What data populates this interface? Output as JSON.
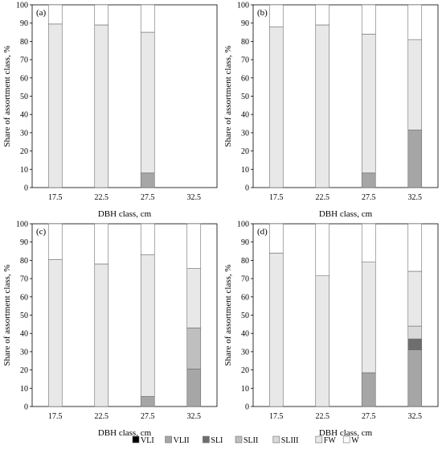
{
  "chart_data": [
    {
      "type": "bar",
      "stacked": true,
      "title": "(a)",
      "xlabel": "DBH class, cm",
      "ylabel": "Share of assortment class, %",
      "ylim": [
        0,
        100
      ],
      "yticks": [
        0,
        10,
        20,
        30,
        40,
        50,
        60,
        70,
        80,
        90,
        100
      ],
      "grid": false,
      "categories": [
        "17.5",
        "22.5",
        "27.5",
        "32.5"
      ],
      "series": [
        {
          "name": "VLI",
          "color": "#000000",
          "values": [
            0,
            0,
            0,
            0
          ]
        },
        {
          "name": "VLII",
          "color": "#a6a6a6",
          "values": [
            0,
            0,
            8,
            0
          ]
        },
        {
          "name": "SLI",
          "color": "#6e6e6e",
          "values": [
            0,
            0,
            0,
            0
          ]
        },
        {
          "name": "SLII",
          "color": "#bfbfbf",
          "values": [
            0,
            0,
            0,
            0
          ]
        },
        {
          "name": "SLIII",
          "color": "#d9d9d9",
          "values": [
            0,
            0,
            0,
            0
          ]
        },
        {
          "name": "FW",
          "color": "#e8e8e8",
          "values": [
            89.5,
            89,
            77,
            0
          ]
        },
        {
          "name": "W",
          "color": "#ffffff",
          "values": [
            10.5,
            11,
            15,
            0
          ]
        }
      ]
    },
    {
      "type": "bar",
      "stacked": true,
      "title": "(b)",
      "xlabel": "DBH class, cm",
      "ylabel": "Share of assortment class, %",
      "ylim": [
        0,
        100
      ],
      "yticks": [
        0,
        10,
        20,
        30,
        40,
        50,
        60,
        70,
        80,
        90,
        100
      ],
      "grid": false,
      "categories": [
        "17.5",
        "22.5",
        "27.5",
        "32.5"
      ],
      "series": [
        {
          "name": "VLI",
          "color": "#000000",
          "values": [
            0,
            0,
            0,
            0
          ]
        },
        {
          "name": "VLII",
          "color": "#a6a6a6",
          "values": [
            0,
            0,
            8,
            31.5
          ]
        },
        {
          "name": "SLI",
          "color": "#6e6e6e",
          "values": [
            0,
            0,
            0,
            0
          ]
        },
        {
          "name": "SLII",
          "color": "#bfbfbf",
          "values": [
            0,
            0,
            0,
            0
          ]
        },
        {
          "name": "SLIII",
          "color": "#d9d9d9",
          "values": [
            0,
            0,
            0,
            0
          ]
        },
        {
          "name": "FW",
          "color": "#e8e8e8",
          "values": [
            88,
            89,
            76,
            49.5
          ]
        },
        {
          "name": "W",
          "color": "#ffffff",
          "values": [
            12,
            11,
            16,
            19
          ]
        }
      ]
    },
    {
      "type": "bar",
      "stacked": true,
      "title": "(c)",
      "xlabel": "DBH class, cm",
      "ylabel": "Share of assortment class, %",
      "ylim": [
        0,
        100
      ],
      "yticks": [
        0,
        10,
        20,
        30,
        40,
        50,
        60,
        70,
        80,
        90,
        100
      ],
      "grid": false,
      "categories": [
        "17.5",
        "22.5",
        "27.5",
        "32.5"
      ],
      "series": [
        {
          "name": "VLI",
          "color": "#000000",
          "values": [
            0,
            0,
            0,
            0
          ]
        },
        {
          "name": "VLII",
          "color": "#a6a6a6",
          "values": [
            0,
            0,
            5.5,
            20.5
          ]
        },
        {
          "name": "SLI",
          "color": "#6e6e6e",
          "values": [
            0,
            0,
            0,
            0
          ]
        },
        {
          "name": "SLII",
          "color": "#bfbfbf",
          "values": [
            0,
            0,
            0,
            22.5
          ]
        },
        {
          "name": "SLIII",
          "color": "#d9d9d9",
          "values": [
            0,
            0,
            0,
            0
          ]
        },
        {
          "name": "FW",
          "color": "#e8e8e8",
          "values": [
            80.5,
            78,
            77.5,
            32.5
          ]
        },
        {
          "name": "W",
          "color": "#ffffff",
          "values": [
            19.5,
            22,
            17,
            24.5
          ]
        }
      ]
    },
    {
      "type": "bar",
      "stacked": true,
      "title": "(d)",
      "xlabel": "DBH class, cm",
      "ylabel": "Share of assortment class, %",
      "ylim": [
        0,
        100
      ],
      "yticks": [
        0,
        10,
        20,
        30,
        40,
        50,
        60,
        70,
        80,
        90,
        100
      ],
      "grid": false,
      "categories": [
        "17.5",
        "22.5",
        "27.5",
        "32.5"
      ],
      "series": [
        {
          "name": "VLI",
          "color": "#000000",
          "values": [
            0,
            0,
            0,
            0
          ]
        },
        {
          "name": "VLII",
          "color": "#a6a6a6",
          "values": [
            0,
            0,
            18.5,
            31
          ]
        },
        {
          "name": "SLI",
          "color": "#6e6e6e",
          "values": [
            0,
            0,
            0,
            6
          ]
        },
        {
          "name": "SLII",
          "color": "#bfbfbf",
          "values": [
            0,
            0,
            0,
            0
          ]
        },
        {
          "name": "SLIII",
          "color": "#d9d9d9",
          "values": [
            0,
            0,
            0,
            7
          ]
        },
        {
          "name": "FW",
          "color": "#e8e8e8",
          "values": [
            84,
            71.5,
            60.5,
            30
          ]
        },
        {
          "name": "W",
          "color": "#ffffff",
          "values": [
            16,
            28.5,
            21,
            26
          ]
        }
      ]
    }
  ],
  "legend": {
    "placement": "bottom-center",
    "entries": [
      {
        "name": "VLI",
        "color": "#000000"
      },
      {
        "name": "VLII",
        "color": "#a6a6a6"
      },
      {
        "name": "SLI",
        "color": "#6e6e6e"
      },
      {
        "name": "SLII",
        "color": "#bfbfbf"
      },
      {
        "name": "SLIII",
        "color": "#d9d9d9"
      },
      {
        "name": "FW",
        "color": "#e8e8e8"
      },
      {
        "name": "W",
        "color": "#ffffff"
      }
    ]
  }
}
